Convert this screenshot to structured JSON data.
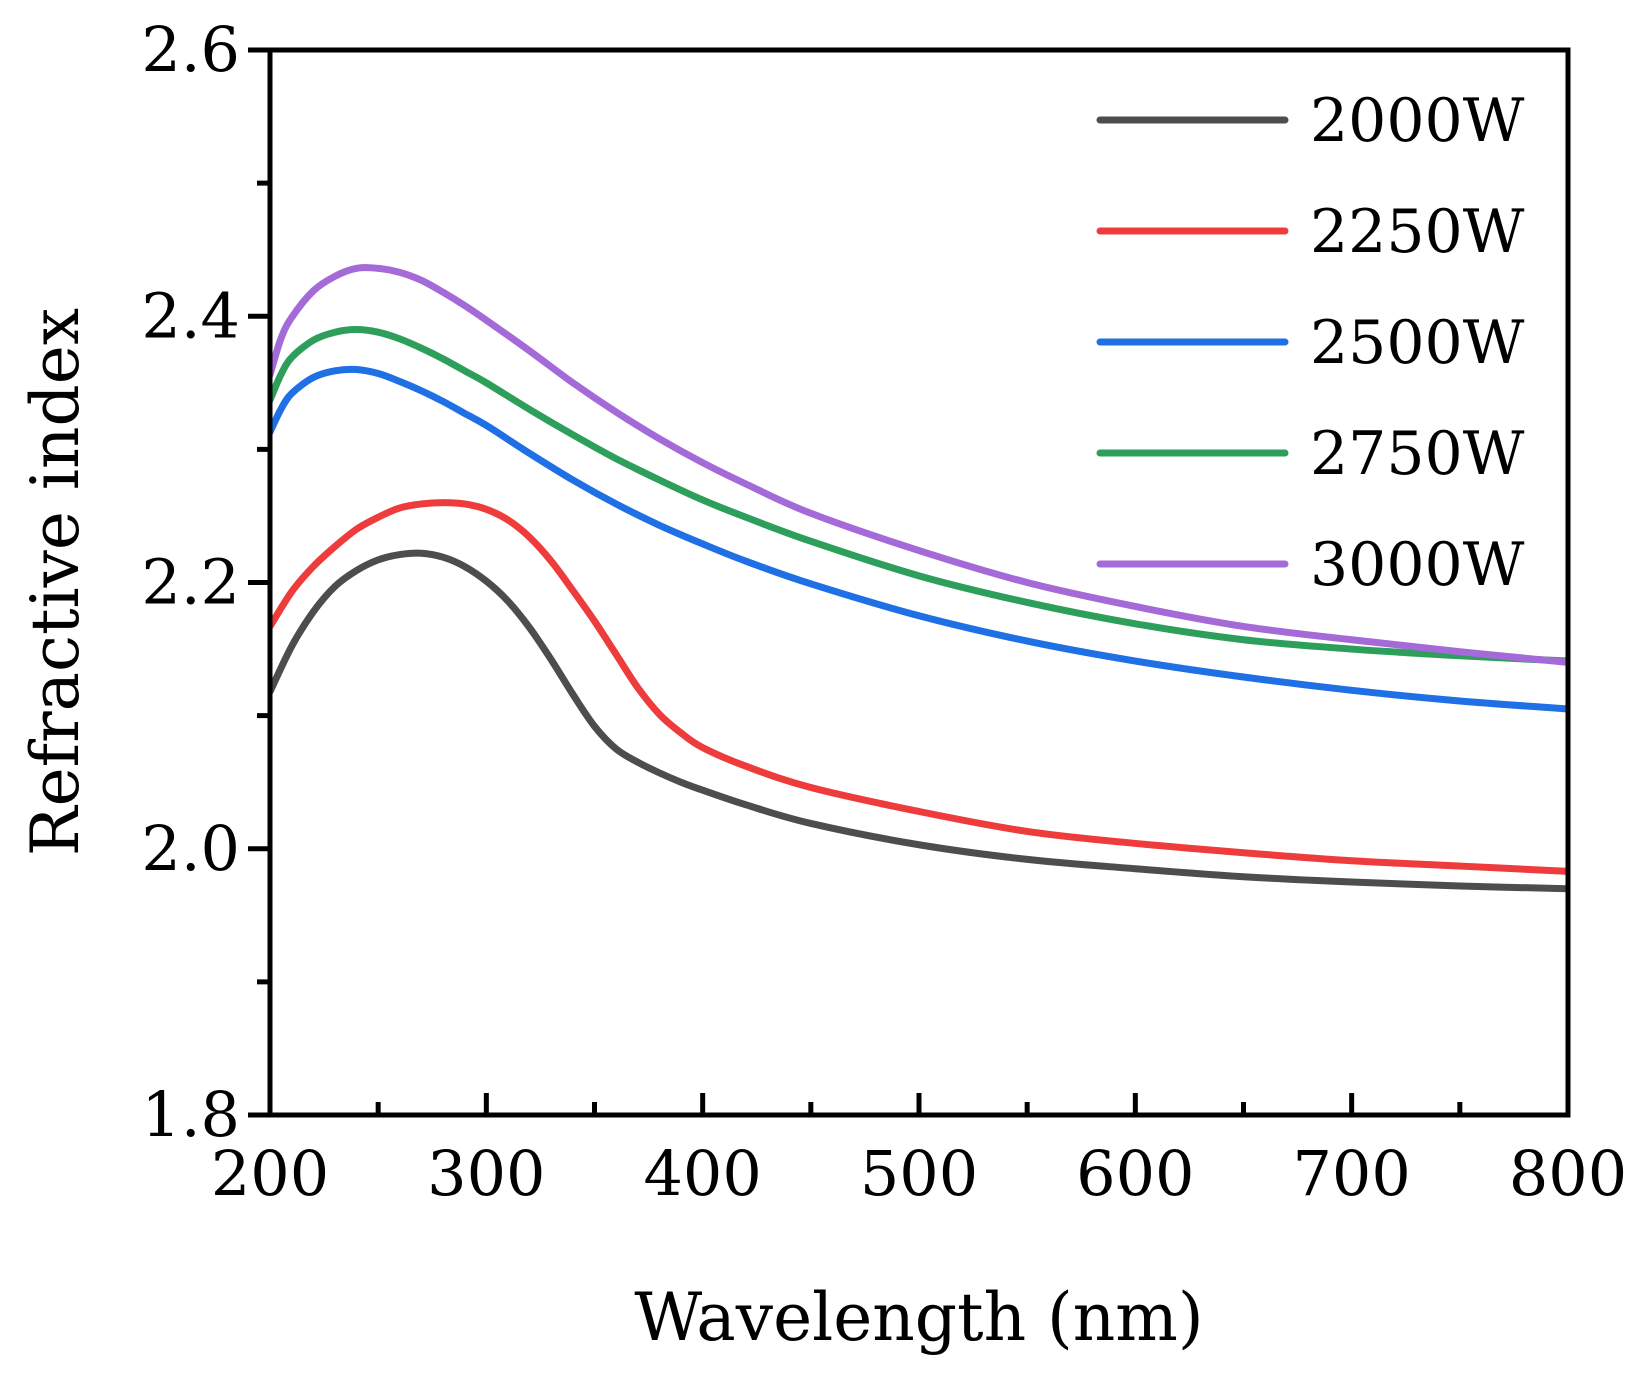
{
  "chart_data": {
    "type": "line",
    "title": "",
    "xlabel": "Wavelength (nm)",
    "ylabel": "Refractive index",
    "xlim": [
      200,
      800
    ],
    "ylim": [
      1.8,
      2.6
    ],
    "x_ticks": [
      200,
      300,
      400,
      500,
      600,
      700,
      800
    ],
    "x_tick_labels": [
      "200",
      "300",
      "400",
      "500",
      "600",
      "700",
      "800"
    ],
    "y_ticks": [
      1.8,
      2.0,
      2.2,
      2.4,
      2.6
    ],
    "y_tick_labels": [
      "1.8",
      "2.0",
      "2.2",
      "2.4",
      "2.6"
    ],
    "x_minor_ticks": [
      250,
      350,
      450,
      550,
      650,
      750
    ],
    "y_minor_ticks": [
      1.9,
      2.1,
      2.3,
      2.5
    ],
    "grid": false,
    "legend_position": "top-right",
    "series": [
      {
        "name": "2000W",
        "color": "#4d4d4d",
        "x": [
          200,
          210,
          220,
          230,
          240,
          250,
          260,
          270,
          280,
          290,
          300,
          310,
          320,
          330,
          340,
          350,
          360,
          370,
          380,
          390,
          400,
          420,
          450,
          500,
          550,
          600,
          650,
          700,
          750,
          800
        ],
        "y": [
          2.118,
          2.152,
          2.178,
          2.197,
          2.209,
          2.217,
          2.221,
          2.222,
          2.219,
          2.212,
          2.201,
          2.186,
          2.166,
          2.142,
          2.116,
          2.092,
          2.075,
          2.065,
          2.057,
          2.05,
          2.044,
          2.033,
          2.019,
          2.003,
          1.992,
          1.985,
          1.979,
          1.975,
          1.972,
          1.97
        ]
      },
      {
        "name": "2250W",
        "color": "#ee3b3b",
        "x": [
          200,
          210,
          220,
          230,
          240,
          250,
          260,
          270,
          280,
          290,
          300,
          310,
          320,
          330,
          340,
          350,
          360,
          370,
          380,
          390,
          400,
          420,
          450,
          500,
          550,
          600,
          650,
          700,
          750,
          800
        ],
        "y": [
          2.167,
          2.193,
          2.212,
          2.227,
          2.24,
          2.249,
          2.256,
          2.259,
          2.26,
          2.259,
          2.255,
          2.247,
          2.234,
          2.216,
          2.194,
          2.171,
          2.146,
          2.121,
          2.101,
          2.087,
          2.076,
          2.062,
          2.046,
          2.028,
          2.013,
          2.004,
          1.997,
          1.991,
          1.987,
          1.983
        ]
      },
      {
        "name": "2500W",
        "color": "#1f6fe5",
        "x": [
          200,
          205,
          210,
          220,
          230,
          240,
          250,
          260,
          270,
          280,
          290,
          300,
          320,
          340,
          360,
          380,
          400,
          420,
          450,
          500,
          550,
          600,
          650,
          700,
          750,
          800
        ],
        "y": [
          2.313,
          2.33,
          2.342,
          2.354,
          2.359,
          2.36,
          2.357,
          2.351,
          2.344,
          2.336,
          2.327,
          2.318,
          2.297,
          2.277,
          2.259,
          2.243,
          2.229,
          2.216,
          2.199,
          2.175,
          2.156,
          2.141,
          2.129,
          2.119,
          2.111,
          2.105
        ]
      },
      {
        "name": "2750W",
        "color": "#2e9e5b",
        "x": [
          200,
          205,
          210,
          220,
          230,
          240,
          250,
          260,
          270,
          280,
          290,
          300,
          320,
          340,
          360,
          380,
          400,
          420,
          450,
          500,
          550,
          600,
          650,
          700,
          750,
          800
        ],
        "y": [
          2.337,
          2.356,
          2.369,
          2.382,
          2.388,
          2.39,
          2.388,
          2.383,
          2.376,
          2.368,
          2.359,
          2.35,
          2.33,
          2.311,
          2.293,
          2.277,
          2.262,
          2.249,
          2.231,
          2.205,
          2.185,
          2.169,
          2.157,
          2.15,
          2.145,
          2.141
        ]
      },
      {
        "name": "3000W",
        "color": "#a46ad8",
        "x": [
          200,
          205,
          210,
          220,
          230,
          240,
          250,
          260,
          270,
          280,
          290,
          300,
          320,
          340,
          360,
          380,
          400,
          420,
          450,
          500,
          550,
          600,
          650,
          700,
          750,
          800
        ],
        "y": [
          2.356,
          2.383,
          2.399,
          2.419,
          2.43,
          2.436,
          2.436,
          2.433,
          2.427,
          2.418,
          2.408,
          2.397,
          2.374,
          2.35,
          2.328,
          2.308,
          2.29,
          2.274,
          2.252,
          2.224,
          2.2,
          2.182,
          2.167,
          2.157,
          2.148,
          2.14
        ]
      }
    ]
  }
}
